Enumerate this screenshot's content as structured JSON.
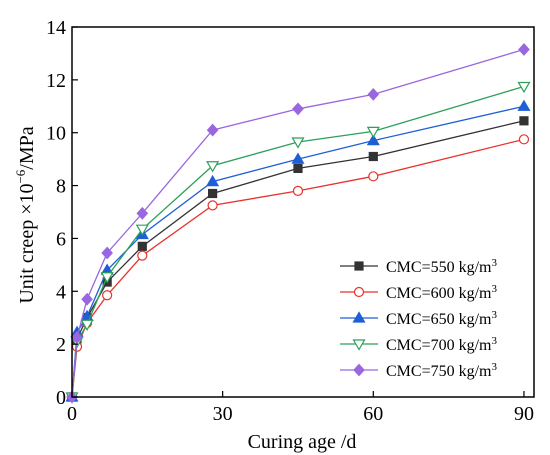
{
  "chart_data": {
    "type": "line",
    "xlabel": "Curing age /d",
    "ylabel_text": "Unit creep ×10",
    "ylabel_exp": "−6",
    "ylabel_unit": "/MPa",
    "xlim": [
      0,
      92
    ],
    "ylim": [
      0,
      14
    ],
    "xticks": [
      0,
      30,
      60,
      90
    ],
    "yticks": [
      0,
      2,
      4,
      6,
      8,
      10,
      12,
      14
    ],
    "grid": false,
    "legend_position": "bottom-right",
    "x": [
      0,
      1,
      3,
      7,
      14,
      28,
      45,
      60,
      90
    ],
    "series": [
      {
        "name": "CMC=550 kg/m",
        "name_sup": "3",
        "marker": "square",
        "filled": true,
        "color": "#333333",
        "values": [
          0,
          2.2,
          3.0,
          4.35,
          5.7,
          7.7,
          8.65,
          9.1,
          10.45
        ]
      },
      {
        "name": "CMC=600 kg/m",
        "name_sup": "3",
        "marker": "circle",
        "filled": false,
        "color": "#e8322a",
        "values": [
          0,
          1.9,
          2.8,
          3.85,
          5.35,
          7.25,
          7.8,
          8.35,
          9.75
        ]
      },
      {
        "name": "CMC=650 kg/m",
        "name_sup": "3",
        "marker": "triangle-up",
        "filled": true,
        "color": "#1f5fd6",
        "values": [
          0,
          2.45,
          3.05,
          4.8,
          6.15,
          8.15,
          9.0,
          9.7,
          11.0
        ]
      },
      {
        "name": "CMC=700 kg/m",
        "name_sup": "3",
        "marker": "triangle-down",
        "filled": false,
        "color": "#2ca05a",
        "values": [
          0,
          2.1,
          2.75,
          4.55,
          6.35,
          8.75,
          9.65,
          10.05,
          11.75
        ]
      },
      {
        "name": "CMC=750 kg/m",
        "name_sup": "3",
        "marker": "diamond",
        "filled": true,
        "color": "#9a67e0",
        "values": [
          0,
          2.25,
          3.7,
          5.45,
          6.95,
          10.1,
          10.9,
          11.45,
          13.15
        ]
      }
    ]
  }
}
